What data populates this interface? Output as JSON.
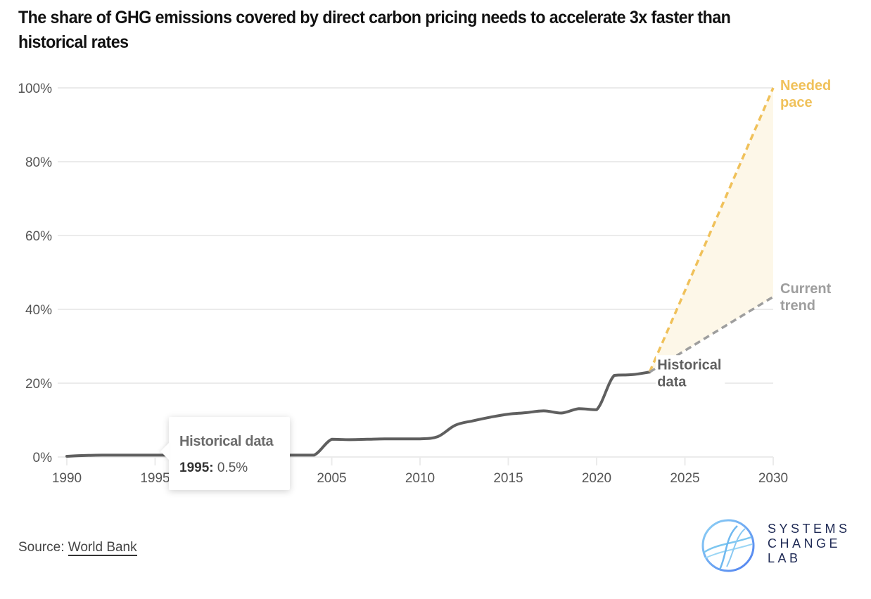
{
  "title": "The share of GHG emissions covered by direct carbon pricing needs to accelerate 3x faster than historical rates",
  "tooltip": {
    "series": "Historical data",
    "year": "1995:",
    "value": "0.5%"
  },
  "source": {
    "prefix": "Source: ",
    "link_text": "World Bank"
  },
  "logo": {
    "lines": [
      "SYSTEMS",
      "CHANGE",
      "LAB"
    ]
  },
  "colors": {
    "historical": "#5f5f5f",
    "needed": "#f0c15a",
    "current": "#9e9e9e",
    "shade": "#fdf7e8",
    "grid": "#ebebeb"
  },
  "chart_data": {
    "type": "line",
    "title": "The share of GHG emissions covered by direct carbon pricing needs to accelerate 3x faster than historical rates",
    "xlabel": "",
    "ylabel": "",
    "xlim": [
      1990,
      2030
    ],
    "ylim": [
      0,
      100
    ],
    "x_ticks": [
      1990,
      1995,
      2000,
      2005,
      2010,
      2015,
      2020,
      2025,
      2030
    ],
    "x_tick_labels": [
      "1990",
      "1995",
      "2000",
      "2005",
      "2010",
      "2015",
      "2020",
      "2025",
      "2030"
    ],
    "y_ticks": [
      0,
      20,
      40,
      60,
      80,
      100
    ],
    "y_tick_labels": [
      "0%",
      "20%",
      "40%",
      "60%",
      "80%",
      "100%"
    ],
    "grid": true,
    "series": [
      {
        "name": "Historical data",
        "style": "solid",
        "x": [
          1990,
          1991,
          1992,
          1993,
          1994,
          1995,
          1996,
          1997,
          1998,
          1999,
          2000,
          2001,
          2002,
          2003,
          2004,
          2005,
          2006,
          2007,
          2008,
          2009,
          2010,
          2011,
          2012,
          2013,
          2014,
          2015,
          2016,
          2017,
          2018,
          2019,
          2020,
          2021,
          2022,
          2023
        ],
        "values": [
          0.2,
          0.4,
          0.5,
          0.5,
          0.5,
          0.5,
          0.5,
          0.5,
          0.5,
          0.5,
          0.5,
          0.5,
          0.5,
          0.5,
          0.5,
          4.8,
          4.7,
          4.8,
          4.9,
          4.9,
          4.9,
          5.5,
          8.6,
          9.8,
          10.8,
          11.6,
          12.0,
          12.5,
          11.9,
          13.1,
          12.8,
          22.1,
          22.3,
          23.0
        ]
      },
      {
        "name": "Needed pace",
        "style": "dashed",
        "x": [
          2023,
          2030
        ],
        "values": [
          23.0,
          100
        ]
      },
      {
        "name": "Current trend",
        "style": "dashed",
        "x": [
          2023,
          2030
        ],
        "values": [
          23.0,
          43.4
        ]
      }
    ],
    "annotations": [
      {
        "text": [
          "Needed",
          "pace"
        ],
        "series": "Needed pace"
      },
      {
        "text": [
          "Current",
          "trend"
        ],
        "series": "Current trend"
      },
      {
        "text": [
          "Historical",
          "data"
        ],
        "series": "Historical data"
      }
    ],
    "shaded_region": {
      "between": [
        "Current trend",
        "Needed pace"
      ],
      "x": [
        2023,
        2030
      ]
    },
    "tooltip": {
      "series": "Historical data",
      "x": 1995,
      "value": 0.5
    }
  }
}
